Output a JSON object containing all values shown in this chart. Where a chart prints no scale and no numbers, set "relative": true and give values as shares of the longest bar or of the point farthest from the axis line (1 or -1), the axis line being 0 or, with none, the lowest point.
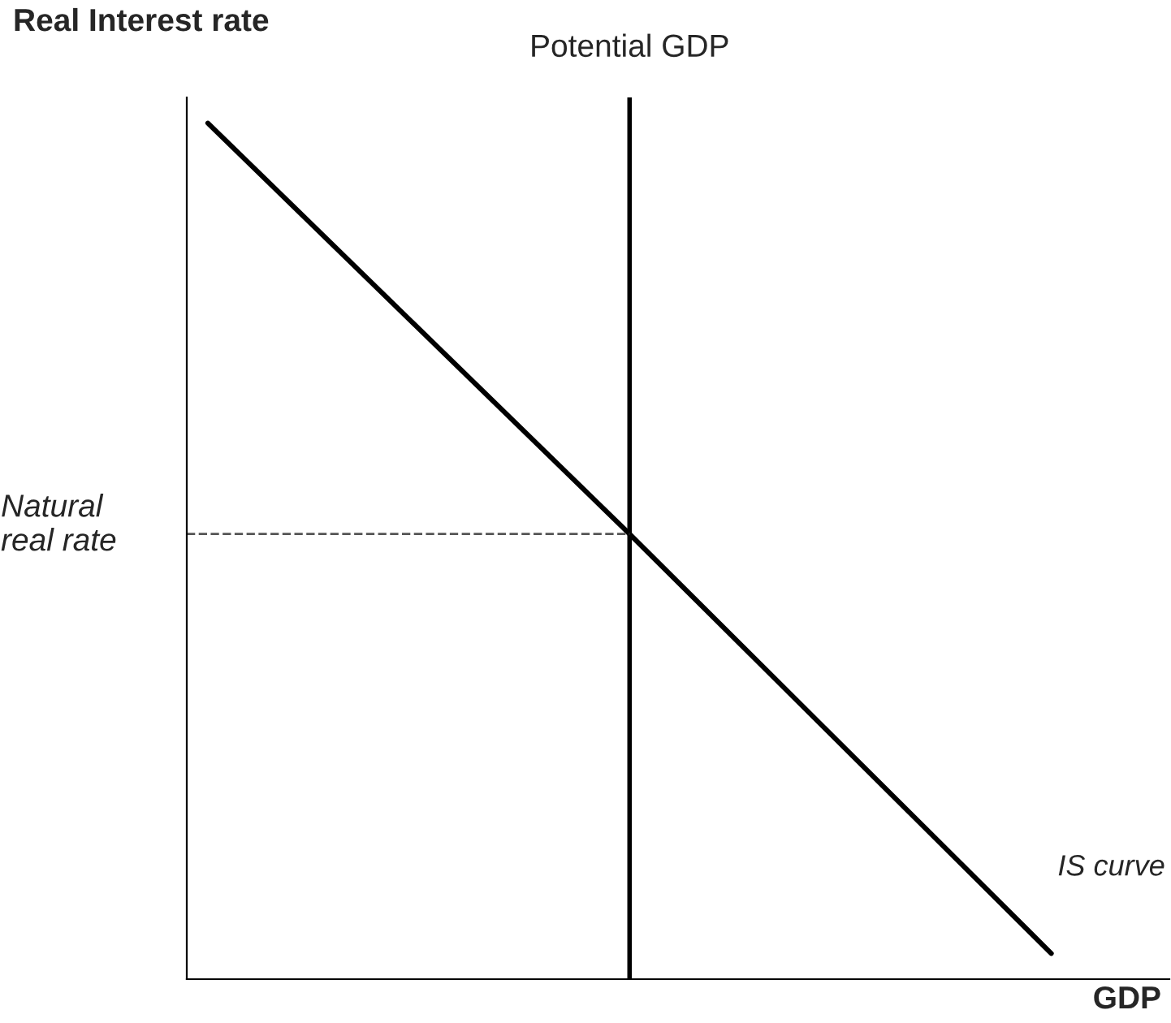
{
  "chart_data": {
    "type": "line",
    "relative": true,
    "title": "Real Interest rate",
    "xlabel": "GDP",
    "categories": [
      null,
      null,
      null
    ],
    "series": [
      {
        "name": "IS curve",
        "color": "#000000",
        "values": [
          1,
          0.52,
          0.03
        ]
      }
    ],
    "annotations": [
      "Potential GDP"
    ],
    "ref_lines": [
      {
        "axis": "y",
        "value": 0.52,
        "label": "Natural\nreal rate",
        "color": "#555555",
        "line_style": "dashed"
      }
    ],
    "legend": false,
    "marker": "none",
    "line_style": "solid",
    "tick_labels": false
  }
}
